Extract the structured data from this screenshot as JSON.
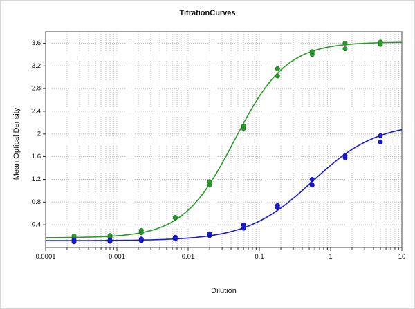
{
  "chart_data": {
    "type": "scatter",
    "title": "TitrationCurves",
    "xlabel": "Dilution",
    "ylabel": "Mean Optical Density",
    "x_scale": "log",
    "xlim": [
      0.0001,
      10
    ],
    "ylim": [
      0,
      3.8
    ],
    "grid": "dotted",
    "legend_position": "none",
    "x_ticks": [
      {
        "v": 0.0001,
        "label": "0.0001"
      },
      {
        "v": 0.001,
        "label": "0.001"
      },
      {
        "v": 0.01,
        "label": "0.01"
      },
      {
        "v": 0.1,
        "label": "0.1"
      },
      {
        "v": 1,
        "label": "1"
      },
      {
        "v": 10,
        "label": "10"
      }
    ],
    "y_ticks": [
      {
        "v": 0.4,
        "label": "0.4"
      },
      {
        "v": 0.8,
        "label": "0.8"
      },
      {
        "v": 1.2,
        "label": "1.2"
      },
      {
        "v": 1.6,
        "label": "1.6"
      },
      {
        "v": 2.0,
        "label": "2"
      },
      {
        "v": 2.4,
        "label": "2.4"
      },
      {
        "v": 2.8,
        "label": "2.8"
      },
      {
        "v": 3.2,
        "label": "3.2"
      },
      {
        "v": 3.6,
        "label": "3.6"
      }
    ],
    "series": [
      {
        "name": "green-titration-curve",
        "color": "#2a9a2a",
        "stroke": "#1d7a1d",
        "fit_4pl": {
          "a": 0.17,
          "d": 3.62,
          "c": 0.045,
          "b": 1.2
        },
        "points": [
          {
            "x": 0.00025,
            "y": [
              0.17,
              0.2
            ]
          },
          {
            "x": 0.0008,
            "y": [
              0.18,
              0.21
            ]
          },
          {
            "x": 0.0022,
            "y": [
              0.26,
              0.3
            ]
          },
          {
            "x": 0.0066,
            "y": [
              0.52,
              0.53
            ]
          },
          {
            "x": 0.02,
            "y": [
              1.1,
              1.16
            ]
          },
          {
            "x": 0.06,
            "y": [
              2.1,
              2.14
            ]
          },
          {
            "x": 0.18,
            "y": [
              3.02,
              3.15
            ]
          },
          {
            "x": 0.55,
            "y": [
              3.4,
              3.45
            ]
          },
          {
            "x": 1.6,
            "y": [
              3.5,
              3.6
            ]
          },
          {
            "x": 5,
            "y": [
              3.58,
              3.62
            ]
          }
        ]
      },
      {
        "name": "blue-titration-curve",
        "color": "#1b1bd6",
        "stroke": "#1111a8",
        "fit_4pl": {
          "a": 0.12,
          "d": 2.2,
          "c": 0.55,
          "b": 0.95
        },
        "points": [
          {
            "x": 0.00025,
            "y": [
              0.1,
              0.13
            ]
          },
          {
            "x": 0.0008,
            "y": [
              0.11,
              0.13
            ]
          },
          {
            "x": 0.0022,
            "y": [
              0.12,
              0.15
            ]
          },
          {
            "x": 0.0066,
            "y": [
              0.15,
              0.18
            ]
          },
          {
            "x": 0.02,
            "y": [
              0.21,
              0.24
            ]
          },
          {
            "x": 0.06,
            "y": [
              0.34,
              0.4
            ]
          },
          {
            "x": 0.18,
            "y": [
              0.7,
              0.74
            ]
          },
          {
            "x": 0.55,
            "y": [
              1.1,
              1.2
            ]
          },
          {
            "x": 1.6,
            "y": [
              1.58,
              1.62
            ]
          },
          {
            "x": 5,
            "y": [
              1.86,
              1.97
            ]
          }
        ]
      }
    ]
  }
}
